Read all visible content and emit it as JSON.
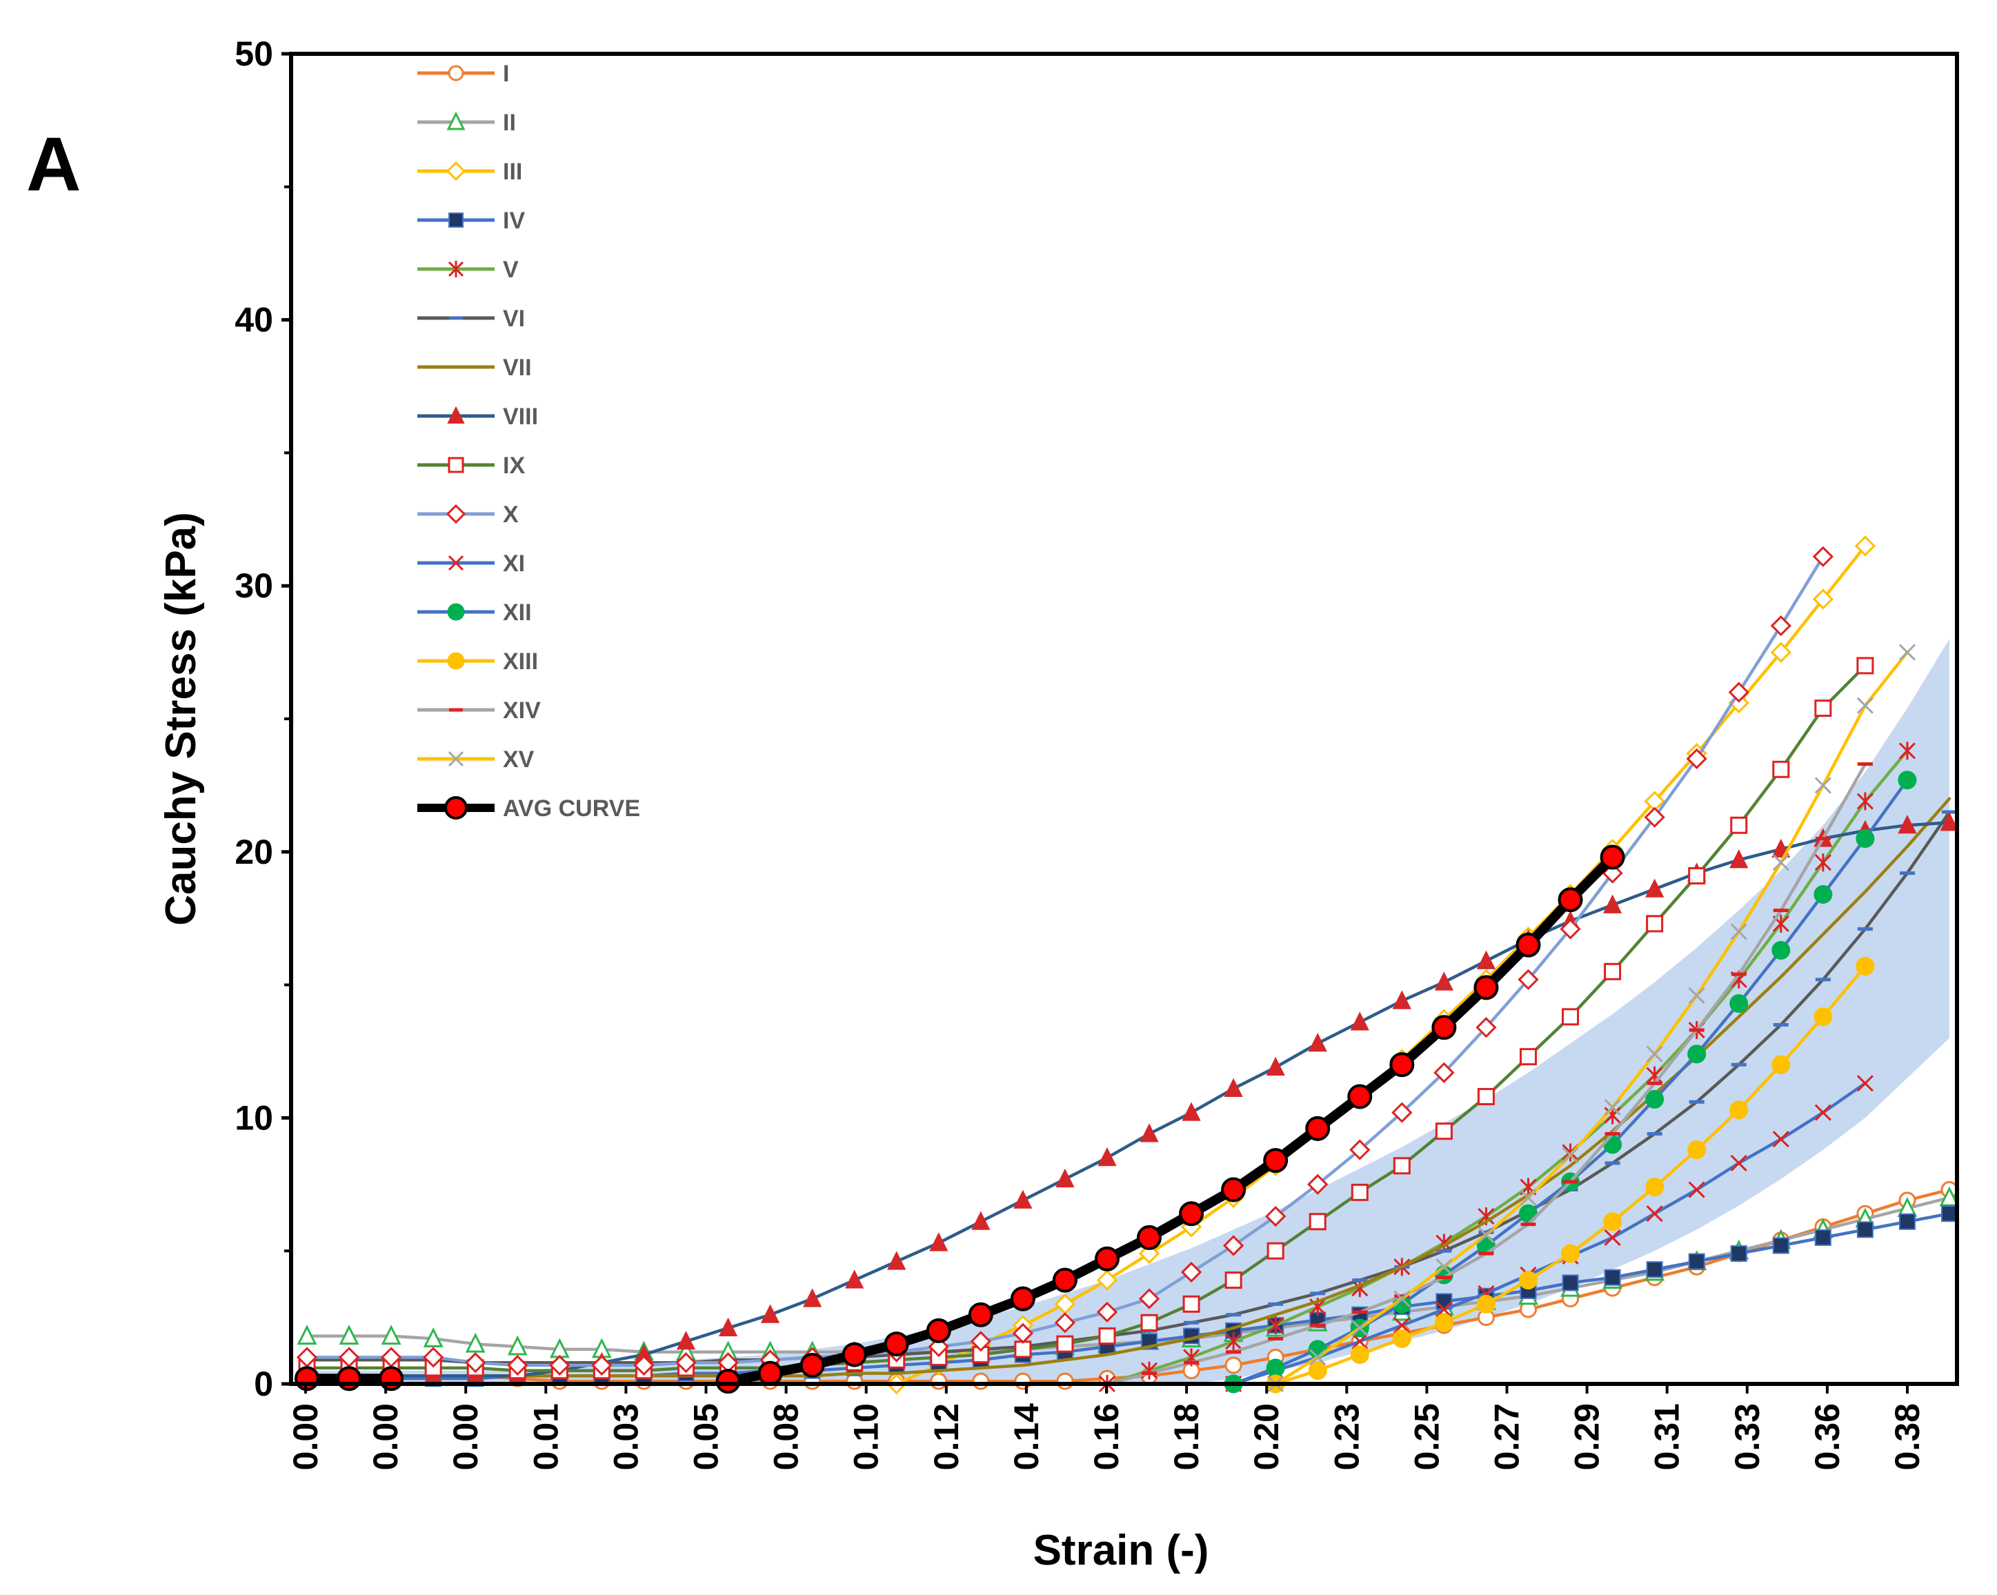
{
  "panel_label": "A",
  "chart_data": {
    "type": "line",
    "title": "",
    "xlabel": "Strain (-)",
    "ylabel": "Cauchy Stress (kPa)",
    "ylim": [
      0,
      50
    ],
    "yticks": [
      0,
      10,
      20,
      30,
      40,
      50
    ],
    "xlim": [
      0,
      0.39
    ],
    "x": [
      0,
      0.01,
      0.02,
      0.03,
      0.04,
      0.05,
      0.06,
      0.07,
      0.08,
      0.09,
      0.1,
      0.11,
      0.12,
      0.13,
      0.14,
      0.15,
      0.16,
      0.17,
      0.18,
      0.19,
      0.2,
      0.21,
      0.22,
      0.23,
      0.24,
      0.25,
      0.26,
      0.27,
      0.28,
      0.29,
      0.3,
      0.31,
      0.32,
      0.33,
      0.34,
      0.35,
      0.36,
      0.37,
      0.38,
      0.39
    ],
    "x_tick_labels": [
      "0.00",
      "0.00",
      "0.00",
      "0.01",
      "0.03",
      "0.05",
      "0.08",
      "0.10",
      "0.12",
      "0.14",
      "0.16",
      "0.18",
      "0.20",
      "0.23",
      "0.25",
      "0.27",
      "0.29",
      "0.31",
      "0.33",
      "0.36",
      "0.38"
    ],
    "grid": false,
    "legend_position": "top-left",
    "band": {
      "name": "SD band",
      "color": "#c6d9f0",
      "upper": [
        0.5,
        0.5,
        0.5,
        0.5,
        0.5,
        0.5,
        0.6,
        0.7,
        0.8,
        0.9,
        1.0,
        1.1,
        1.3,
        1.5,
        1.8,
        2.1,
        2.5,
        2.9,
        3.4,
        3.9,
        4.5,
        5.1,
        5.8,
        6.5,
        7.3,
        8.1,
        8.9,
        9.8,
        10.7,
        11.7,
        12.8,
        13.9,
        15.1,
        16.4,
        17.8,
        19.3,
        21.0,
        23.0,
        25.4,
        28.0
      ],
      "lower": [
        0,
        0,
        0,
        0,
        0,
        0,
        0,
        0,
        0,
        0,
        0,
        0,
        0,
        0,
        0,
        0,
        0,
        0,
        0,
        0,
        0,
        0,
        0.2,
        0.5,
        0.8,
        1.2,
        1.6,
        2.0,
        2.5,
        3.0,
        3.6,
        4.3,
        5.0,
        5.8,
        6.7,
        7.7,
        8.8,
        10.0,
        11.5,
        13.0
      ]
    },
    "series": [
      {
        "name": "I",
        "color": "#ed7d31",
        "marker": "circle-open",
        "marker_color": "#ed7d31",
        "values": [
          0.3,
          0.3,
          0.3,
          0.3,
          0.3,
          0.2,
          0.1,
          0.1,
          0.1,
          0.1,
          0.1,
          0.1,
          0.1,
          0.1,
          0.1,
          0.1,
          0.1,
          0.1,
          0.1,
          0.2,
          0.3,
          0.5,
          0.7,
          1.0,
          1.3,
          1.6,
          1.9,
          2.2,
          2.5,
          2.8,
          3.2,
          3.6,
          4.0,
          4.4,
          4.9,
          5.4,
          5.9,
          6.4,
          6.9,
          7.3
        ]
      },
      {
        "name": "II",
        "color": "#a5a5a5",
        "marker": "triangle-open",
        "marker_color": "#2eb84c",
        "values": [
          1.8,
          1.8,
          1.8,
          1.7,
          1.5,
          1.4,
          1.3,
          1.3,
          1.2,
          1.2,
          1.2,
          1.2,
          1.2,
          1.2,
          1.2,
          1.2,
          1.2,
          1.3,
          1.4,
          1.5,
          1.6,
          1.7,
          1.9,
          2.1,
          2.3,
          2.5,
          2.7,
          2.9,
          3.1,
          3.3,
          3.6,
          3.9,
          4.2,
          4.6,
          5.0,
          5.4,
          5.8,
          6.2,
          6.6,
          7.0
        ]
      },
      {
        "name": "III",
        "color": "#ffc000",
        "marker": "diamond-open",
        "marker_color": "#ffc000",
        "values": [
          null,
          null,
          null,
          null,
          null,
          null,
          null,
          null,
          null,
          null,
          null,
          null,
          null,
          null,
          0.0,
          0.7,
          1.5,
          2.2,
          3.0,
          3.9,
          4.9,
          5.9,
          7.0,
          8.2,
          9.5,
          10.8,
          12.2,
          13.7,
          15.2,
          16.8,
          18.4,
          20.1,
          21.9,
          23.7,
          25.6,
          27.5,
          29.5,
          31.5,
          null,
          null
        ]
      },
      {
        "name": "IV",
        "color": "#4472c4",
        "marker": "square-filled",
        "marker_color": "#1f3864",
        "values": [
          0.2,
          0.2,
          0.2,
          0.2,
          0.2,
          0.3,
          0.3,
          0.3,
          0.3,
          0.4,
          0.4,
          0.5,
          0.5,
          0.6,
          0.7,
          0.8,
          0.9,
          1.1,
          1.2,
          1.4,
          1.6,
          1.8,
          2.0,
          2.2,
          2.4,
          2.6,
          2.9,
          3.1,
          3.3,
          3.5,
          3.8,
          4.0,
          4.3,
          4.6,
          4.9,
          5.2,
          5.5,
          5.8,
          6.1,
          6.4
        ]
      },
      {
        "name": "V",
        "color": "#70ad47",
        "marker": "asterisk",
        "marker_color": "#e02020",
        "values": [
          null,
          null,
          null,
          null,
          null,
          null,
          null,
          null,
          null,
          null,
          null,
          null,
          null,
          null,
          null,
          null,
          null,
          null,
          null,
          0.0,
          0.5,
          1.0,
          1.6,
          2.2,
          2.9,
          3.6,
          4.4,
          5.3,
          6.3,
          7.4,
          8.7,
          10.1,
          11.6,
          13.3,
          15.2,
          17.3,
          19.6,
          21.9,
          23.8,
          null
        ]
      },
      {
        "name": "VI",
        "color": "#595959",
        "marker": "dash",
        "marker_color": "#4472c4",
        "values": [
          0.9,
          0.9,
          0.9,
          0.9,
          0.8,
          0.8,
          0.8,
          0.8,
          0.8,
          0.8,
          0.9,
          0.9,
          1.0,
          1.0,
          1.1,
          1.2,
          1.3,
          1.4,
          1.6,
          1.8,
          2.0,
          2.3,
          2.6,
          3.0,
          3.4,
          3.9,
          4.4,
          5.0,
          5.7,
          6.5,
          7.3,
          8.3,
          9.4,
          10.6,
          12.0,
          13.5,
          15.2,
          17.1,
          19.2,
          21.5
        ]
      },
      {
        "name": "VII",
        "color": "#9c7f12",
        "marker": "none",
        "marker_color": "#9c7f12",
        "values": [
          0.3,
          0.3,
          0.3,
          0.3,
          0.3,
          0.3,
          0.3,
          0.3,
          0.3,
          0.3,
          0.3,
          0.3,
          0.3,
          0.4,
          0.4,
          0.5,
          0.6,
          0.7,
          0.9,
          1.1,
          1.4,
          1.7,
          2.1,
          2.6,
          3.1,
          3.7,
          4.4,
          5.2,
          6.1,
          7.1,
          8.2,
          9.5,
          10.9,
          12.3,
          13.8,
          15.3,
          16.9,
          18.5,
          20.2,
          22.0
        ]
      },
      {
        "name": "VIII",
        "color": "#2e5c8a",
        "marker": "triangle-filled",
        "marker_color": "#d62728",
        "values": [
          0.3,
          0.3,
          0.3,
          0.3,
          0.3,
          0.3,
          0.5,
          0.8,
          1.1,
          1.6,
          2.1,
          2.6,
          3.2,
          3.9,
          4.6,
          5.3,
          6.1,
          6.9,
          7.7,
          8.5,
          9.4,
          10.2,
          11.1,
          11.9,
          12.8,
          13.6,
          14.4,
          15.1,
          15.9,
          16.7,
          17.4,
          18.0,
          18.6,
          19.2,
          19.7,
          20.1,
          20.5,
          20.8,
          21.0,
          21.1
        ]
      },
      {
        "name": "IX",
        "color": "#548235",
        "marker": "square-open",
        "marker_color": "#e02020",
        "values": [
          0.6,
          0.6,
          0.6,
          0.6,
          0.6,
          0.5,
          0.5,
          0.5,
          0.5,
          0.6,
          0.6,
          0.6,
          0.7,
          0.8,
          0.9,
          1.0,
          1.1,
          1.3,
          1.5,
          1.8,
          2.3,
          3.0,
          3.9,
          5.0,
          6.1,
          7.2,
          8.2,
          9.5,
          10.8,
          12.3,
          13.8,
          15.5,
          17.3,
          19.1,
          21.0,
          23.1,
          25.4,
          27.0,
          null,
          null
        ]
      },
      {
        "name": "X",
        "color": "#7f9fd6",
        "marker": "diamond-open",
        "marker_color": "#e02020",
        "values": [
          1.0,
          1.0,
          1.0,
          1.0,
          0.8,
          0.7,
          0.7,
          0.7,
          0.7,
          0.8,
          0.8,
          0.9,
          1.0,
          1.1,
          1.2,
          1.4,
          1.6,
          1.9,
          2.3,
          2.7,
          3.2,
          4.2,
          5.2,
          6.3,
          7.5,
          8.8,
          10.2,
          11.7,
          13.4,
          15.2,
          17.1,
          19.2,
          21.3,
          23.5,
          26.0,
          28.5,
          31.1,
          null,
          null,
          null
        ]
      },
      {
        "name": "XI",
        "color": "#4472c4",
        "marker": "x",
        "marker_color": "#e02020",
        "values": [
          null,
          null,
          null,
          null,
          null,
          null,
          null,
          null,
          null,
          null,
          null,
          null,
          null,
          null,
          null,
          null,
          null,
          null,
          null,
          null,
          null,
          null,
          0.0,
          0.5,
          1.0,
          1.6,
          2.2,
          2.8,
          3.4,
          4.1,
          4.8,
          5.5,
          6.4,
          7.3,
          8.3,
          9.2,
          10.2,
          11.3,
          null,
          null
        ]
      },
      {
        "name": "XII",
        "color": "#4472c4",
        "marker": "circle-filled",
        "marker_color": "#00b050",
        "values": [
          null,
          null,
          null,
          null,
          null,
          null,
          null,
          null,
          null,
          null,
          null,
          null,
          null,
          null,
          null,
          null,
          null,
          null,
          null,
          null,
          null,
          null,
          0.0,
          0.6,
          1.3,
          2.1,
          3.0,
          4.1,
          5.2,
          6.4,
          7.6,
          9.0,
          10.7,
          12.4,
          14.3,
          16.3,
          18.4,
          20.5,
          22.7,
          null
        ]
      },
      {
        "name": "XIII",
        "color": "#ffc000",
        "marker": "circle-filled",
        "marker_color": "#ffc000",
        "values": [
          null,
          null,
          null,
          null,
          null,
          null,
          null,
          null,
          null,
          null,
          null,
          null,
          null,
          null,
          null,
          null,
          null,
          null,
          null,
          null,
          null,
          null,
          null,
          0.0,
          0.5,
          1.1,
          1.7,
          2.3,
          3.0,
          3.9,
          4.9,
          6.1,
          7.4,
          8.8,
          10.3,
          12.0,
          13.8,
          15.7,
          null,
          null
        ]
      },
      {
        "name": "XIV",
        "color": "#a5a5a5",
        "marker": "dash",
        "marker_color": "#e02020",
        "values": [
          null,
          null,
          null,
          null,
          null,
          null,
          null,
          null,
          null,
          null,
          null,
          null,
          null,
          null,
          null,
          null,
          null,
          null,
          null,
          0.0,
          0.4,
          0.8,
          1.2,
          1.7,
          2.2,
          2.7,
          3.3,
          4.0,
          4.9,
          6.0,
          7.6,
          9.4,
          11.3,
          13.3,
          15.4,
          17.8,
          20.5,
          23.3,
          null,
          null
        ]
      },
      {
        "name": "XV",
        "color": "#ffc000",
        "marker": "x",
        "marker_color": "#a5a5a5",
        "values": [
          null,
          null,
          null,
          null,
          null,
          null,
          null,
          null,
          null,
          null,
          null,
          null,
          null,
          null,
          null,
          null,
          null,
          null,
          null,
          null,
          null,
          null,
          null,
          0.0,
          1.0,
          2.1,
          3.2,
          4.4,
          5.6,
          7.0,
          8.6,
          10.4,
          12.4,
          14.6,
          17.0,
          19.6,
          22.5,
          25.5,
          27.5,
          null
        ]
      },
      {
        "name": "AVG CURVE",
        "color": "#000000",
        "marker": "circle-big",
        "marker_color": "#ff0000",
        "thick": true,
        "values": [
          0.2,
          0.2,
          0.2,
          null,
          null,
          null,
          null,
          null,
          null,
          null,
          0.1,
          0.4,
          0.7,
          1.1,
          1.5,
          2.0,
          2.6,
          3.2,
          3.9,
          4.7,
          5.5,
          6.4,
          7.3,
          8.4,
          9.6,
          10.8,
          12.0,
          13.4,
          14.9,
          16.5,
          18.2,
          19.8,
          null,
          null,
          null,
          null,
          null,
          null,
          null,
          null
        ],
        "x_offset_index": 0
      }
    ]
  }
}
